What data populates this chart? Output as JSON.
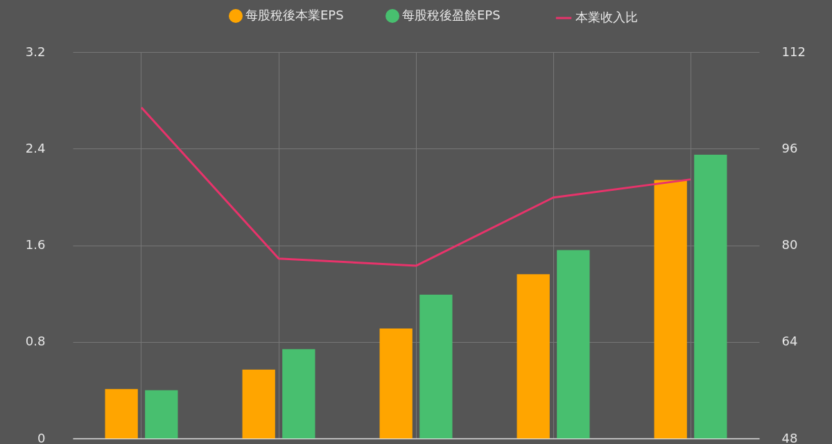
{
  "chart_data": {
    "type": "bar",
    "categories": [
      null,
      null,
      null,
      null,
      null
    ],
    "series": [
      {
        "name": "每股稅後本業EPS",
        "color": "#ffa500",
        "values": [
          0.41,
          0.57,
          0.91,
          1.36,
          2.14
        ]
      },
      {
        "name": "每股稅後盈餘EPS",
        "color": "#48bf6f",
        "values": [
          0.4,
          0.74,
          1.19,
          1.56,
          2.35
        ]
      },
      {
        "name": "本業收入比",
        "type": "line",
        "axis": "y2",
        "color": "#e8336b",
        "values": [
          102.8,
          77.8,
          76.6,
          87.9,
          90.9
        ]
      }
    ],
    "ylim": [
      0,
      3.2
    ],
    "yticks": [
      0,
      0.8,
      1.6,
      2.4,
      3.2
    ],
    "y2lim": [
      48,
      112
    ],
    "y2ticks": [
      48,
      64,
      80,
      96,
      112
    ],
    "grid": true,
    "legend": "top"
  }
}
